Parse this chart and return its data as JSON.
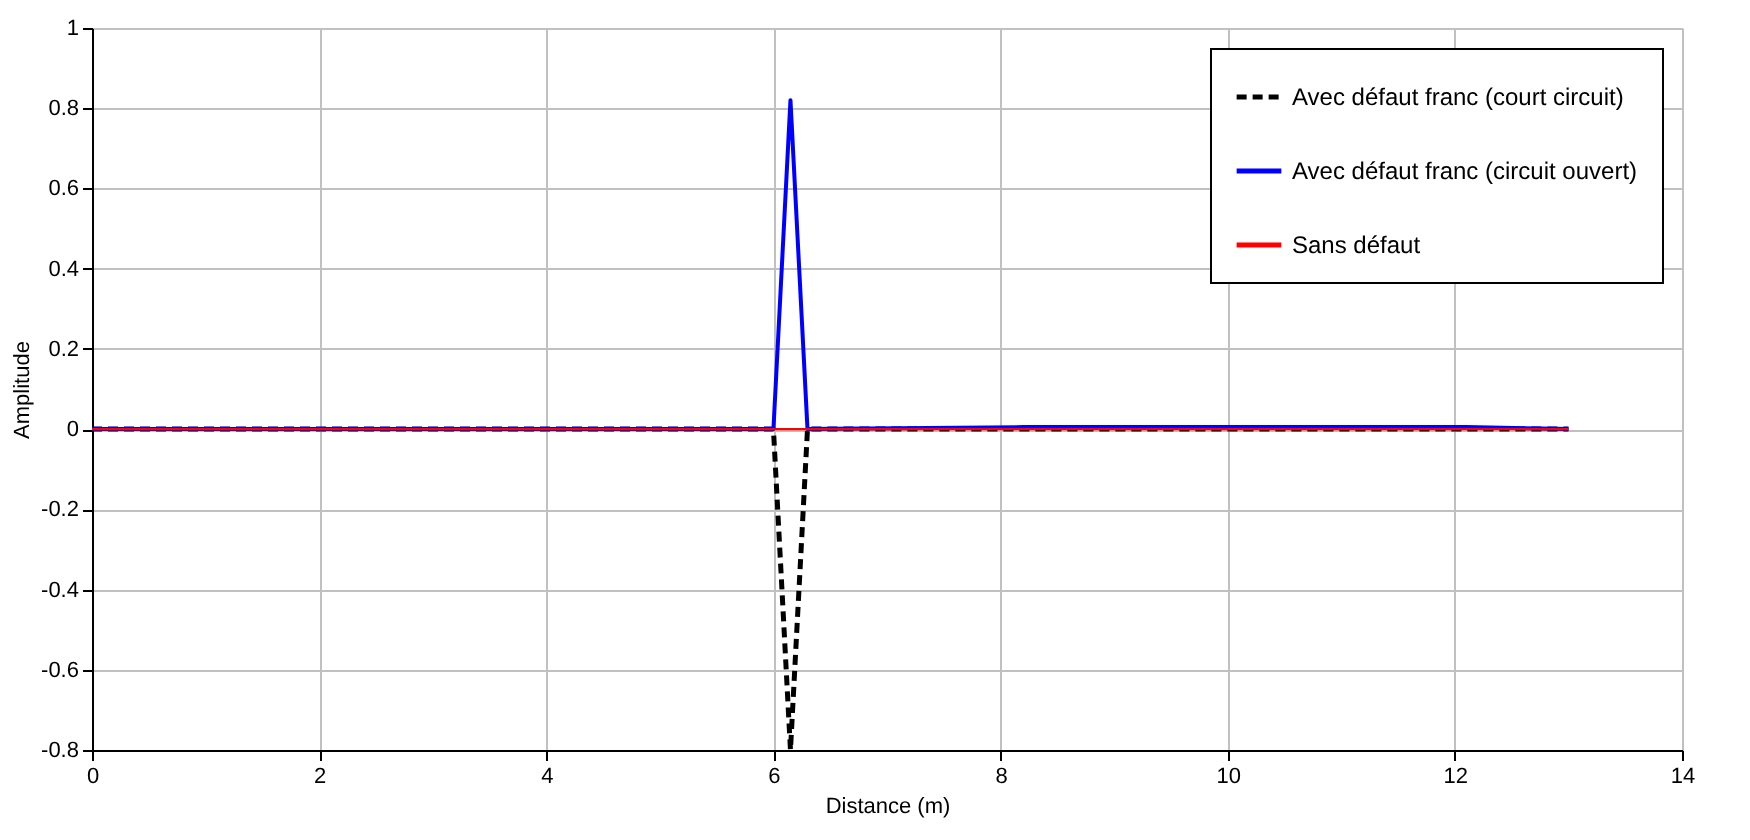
{
  "chart_data": {
    "type": "line",
    "xlabel": "Distance (m)",
    "ylabel": "Amplitude",
    "xlim": [
      0,
      14
    ],
    "xticks": [
      0,
      2,
      4,
      6,
      8,
      10,
      12,
      14
    ],
    "ylim": [
      -0.8,
      1
    ],
    "yticks": [
      -0.8,
      -0.6,
      -0.4,
      -0.2,
      0,
      0.2,
      0.4,
      0.6,
      0.8,
      1
    ],
    "grid": true,
    "legend": "top right",
    "marker": "none",
    "series": [
      {
        "name": "Avec défaut franc (court circuit)",
        "color": "#000000",
        "line_style": "dashed",
        "x": [
          0,
          6.0,
          6.15,
          6.3,
          8.2,
          12.1,
          13
        ],
        "values": [
          0,
          0,
          -0.8,
          0,
          0,
          0,
          0
        ]
      },
      {
        "name": "Avec défaut franc (circuit ouvert)",
        "color": "#0000ff",
        "line_style": "solid",
        "x": [
          0,
          6.0,
          6.15,
          6.3,
          8.2,
          12.1,
          13
        ],
        "values": [
          0,
          0,
          0.82,
          0,
          0.005,
          0.005,
          0
        ]
      },
      {
        "name": "Sans défaut",
        "color": "#ff0000",
        "line_style": "solid",
        "x": [
          0,
          13
        ],
        "values": [
          0,
          0
        ]
      }
    ]
  }
}
